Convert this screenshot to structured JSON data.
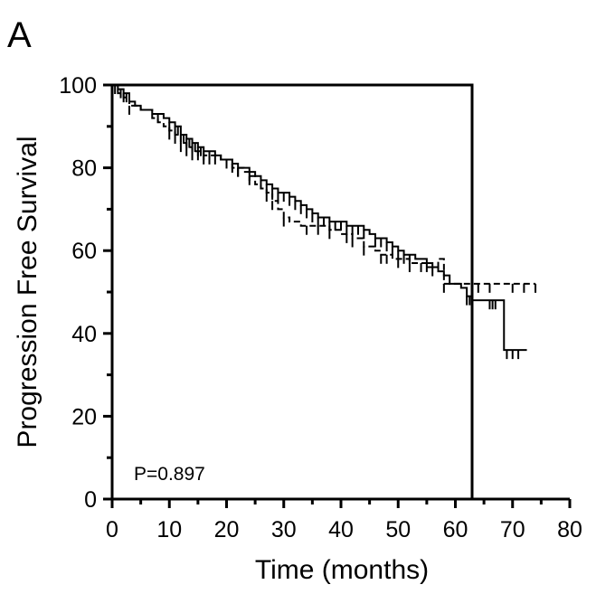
{
  "chart_data": {
    "type": "line",
    "panel_label": "A",
    "xlabel": "Time (months)",
    "ylabel": "Progression Free Survival",
    "annotation": "P=0.897",
    "xlim": [
      0,
      80
    ],
    "ylim": [
      0,
      100
    ],
    "x_ticks": [
      "0",
      "10",
      "20",
      "30",
      "40",
      "50",
      "60",
      "70",
      "80"
    ],
    "y_ticks": [
      "0",
      "20",
      "40",
      "60",
      "80",
      "100"
    ],
    "grid": false,
    "series": [
      {
        "style": "solid",
        "steps": [
          [
            0,
            100
          ],
          [
            1,
            99
          ],
          [
            2,
            98
          ],
          [
            3,
            96
          ],
          [
            4,
            95
          ],
          [
            5,
            94
          ],
          [
            7,
            93
          ],
          [
            9,
            92
          ],
          [
            10,
            91
          ],
          [
            11,
            90
          ],
          [
            12,
            88
          ],
          [
            13,
            87
          ],
          [
            14,
            86
          ],
          [
            15,
            85
          ],
          [
            16,
            84
          ],
          [
            18,
            83
          ],
          [
            19,
            82
          ],
          [
            21,
            81
          ],
          [
            22,
            80
          ],
          [
            24,
            79
          ],
          [
            25,
            78
          ],
          [
            26,
            77
          ],
          [
            27,
            76
          ],
          [
            28,
            75
          ],
          [
            29,
            74
          ],
          [
            31,
            73
          ],
          [
            32,
            72
          ],
          [
            33,
            71
          ],
          [
            34,
            70
          ],
          [
            35,
            69
          ],
          [
            36,
            68
          ],
          [
            38,
            67
          ],
          [
            41,
            66
          ],
          [
            44,
            65
          ],
          [
            45,
            64
          ],
          [
            46,
            63
          ],
          [
            48,
            62
          ],
          [
            49,
            61
          ],
          [
            50,
            60
          ],
          [
            51,
            59
          ],
          [
            53,
            58
          ],
          [
            55,
            57
          ],
          [
            56,
            56
          ],
          [
            57,
            55
          ],
          [
            58,
            54
          ],
          [
            59,
            52
          ],
          [
            61,
            51
          ],
          [
            62,
            49
          ],
          [
            63,
            48
          ],
          [
            68.5,
            36
          ],
          [
            72.5,
            36
          ]
        ],
        "censor_x": [
          0.5,
          1.5,
          2,
          2.5,
          8,
          10,
          11,
          11.5,
          12,
          12.5,
          13,
          13.5,
          14,
          14.5,
          15,
          15.5,
          16,
          17,
          18,
          20,
          21,
          22,
          24,
          26,
          27,
          28,
          29,
          30,
          31,
          32,
          33,
          34,
          35,
          36,
          37,
          38,
          39,
          40,
          41,
          42,
          43,
          44,
          46,
          47,
          48,
          49,
          50,
          51,
          52,
          55,
          62,
          62.5,
          63,
          66,
          66.5,
          67,
          69,
          70,
          71
        ]
      },
      {
        "style": "dashed",
        "steps": [
          [
            0,
            100
          ],
          [
            1,
            98
          ],
          [
            2,
            97
          ],
          [
            3,
            95
          ],
          [
            5,
            94
          ],
          [
            7,
            92
          ],
          [
            8,
            91
          ],
          [
            9,
            90
          ],
          [
            10,
            89
          ],
          [
            11,
            88
          ],
          [
            12,
            86
          ],
          [
            13,
            85
          ],
          [
            14,
            84
          ],
          [
            16,
            83
          ],
          [
            19,
            82
          ],
          [
            21,
            80
          ],
          [
            23,
            79
          ],
          [
            24,
            78
          ],
          [
            25,
            76
          ],
          [
            26,
            75
          ],
          [
            27,
            74
          ],
          [
            28,
            72
          ],
          [
            29,
            70
          ],
          [
            30,
            68
          ],
          [
            31,
            67
          ],
          [
            33,
            66
          ],
          [
            35,
            66
          ],
          [
            38,
            65
          ],
          [
            40,
            64
          ],
          [
            42,
            63
          ],
          [
            44,
            61
          ],
          [
            46,
            60
          ],
          [
            47,
            59
          ],
          [
            49,
            58
          ],
          [
            52,
            57
          ],
          [
            55,
            56
          ],
          [
            57,
            58
          ],
          [
            58,
            52
          ],
          [
            74,
            52
          ]
        ],
        "censor_x": [
          3,
          10,
          11,
          12,
          13,
          14,
          15,
          16,
          17,
          22,
          24,
          27,
          28,
          30,
          34,
          36,
          38,
          41,
          42,
          44,
          47,
          48,
          50,
          52,
          54,
          56,
          58,
          64,
          66,
          70,
          72,
          74
        ]
      }
    ]
  }
}
